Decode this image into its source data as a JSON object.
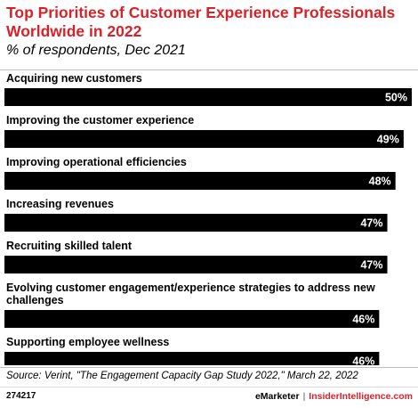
{
  "header": {
    "title": "Top Priorities of Customer Experience Professionals Worldwide in 2022",
    "subtitle": "% of respondents, Dec 2021"
  },
  "footer": {
    "source": "Source: Verint, \"The Engagement Capacity Gap Study 2022,\" March 22, 2022",
    "chart_id": "274217",
    "brand_emarketer": "eMarketer",
    "brand_separator": "|",
    "brand_insider": "InsiderIntelligence.com"
  },
  "colors": {
    "title": "#d6232a",
    "bar": "#000000",
    "value_text": "#ffffff"
  },
  "chart_data": {
    "type": "bar",
    "orientation": "horizontal",
    "title": "Top Priorities of Customer Experience Professionals Worldwide in 2022",
    "subtitle": "% of respondents, Dec 2021",
    "categories": [
      [
        "Acquiring new customers"
      ],
      [
        "Improving the customer experience"
      ],
      [
        "Improving operational efficiencies"
      ],
      [
        "Increasing revenues"
      ],
      [
        "Recruiting skilled talent"
      ],
      [
        "Evolving customer engagement/experience strategies to address new",
        "challenges"
      ],
      [
        "Supporting employee wellness"
      ]
    ],
    "values": [
      50,
      49,
      48,
      47,
      47,
      46,
      46
    ],
    "value_labels": [
      "50%",
      "49%",
      "48%",
      "47%",
      "47%",
      "46%",
      "46%"
    ],
    "unit": "%",
    "xlim": [
      0,
      50
    ],
    "grid": false,
    "legend": "none"
  }
}
